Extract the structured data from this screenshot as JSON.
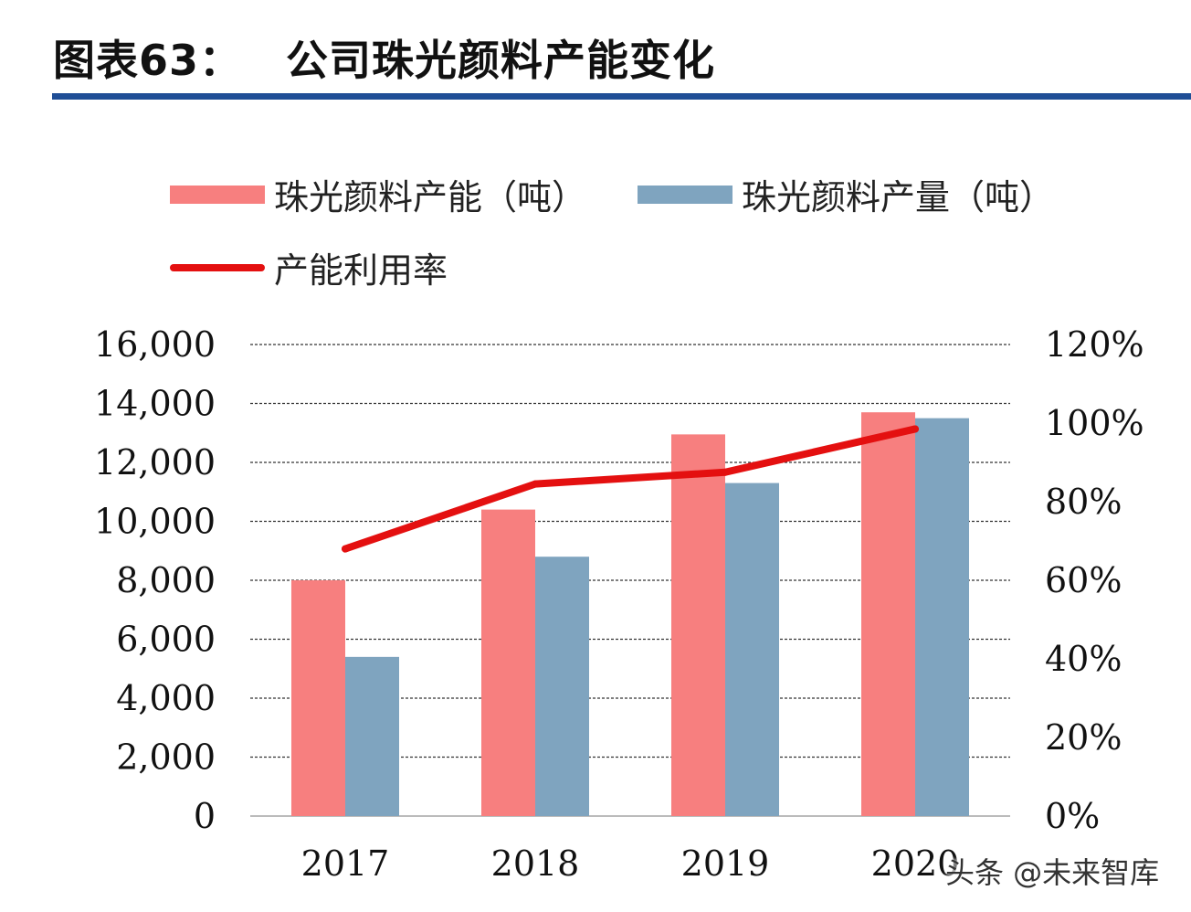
{
  "header": {
    "label": "图表63：",
    "text": "公司珠光颜料产能变化"
  },
  "watermark": "头条 @未来智库",
  "chart_data": {
    "type": "bar",
    "categories": [
      "2017",
      "2018",
      "2019",
      "2020"
    ],
    "series": [
      {
        "name": "珠光颜料产能（吨）",
        "kind": "bar",
        "axis": "left",
        "color": "#f77f7f",
        "values": [
          8000,
          10400,
          12950,
          13700
        ]
      },
      {
        "name": "珠光颜料产量（吨）",
        "kind": "bar",
        "axis": "left",
        "color": "#7fa4bf",
        "values": [
          5400,
          8800,
          11300,
          13500
        ]
      },
      {
        "name": "产能利用率",
        "kind": "line",
        "axis": "right",
        "color": "#e41010",
        "values": [
          0.68,
          0.845,
          0.875,
          0.985
        ]
      }
    ],
    "yleft": {
      "min": 0,
      "max": 16000,
      "ticks": [
        "0",
        "2,000",
        "4,000",
        "6,000",
        "8,000",
        "10,000",
        "12,000",
        "14,000",
        "16,000"
      ]
    },
    "yright": {
      "min": 0,
      "max": 1.2,
      "ticks": [
        "0%",
        "20%",
        "40%",
        "60%",
        "80%",
        "100%",
        "120%"
      ]
    },
    "grid": true,
    "legend_position": "top-left"
  }
}
